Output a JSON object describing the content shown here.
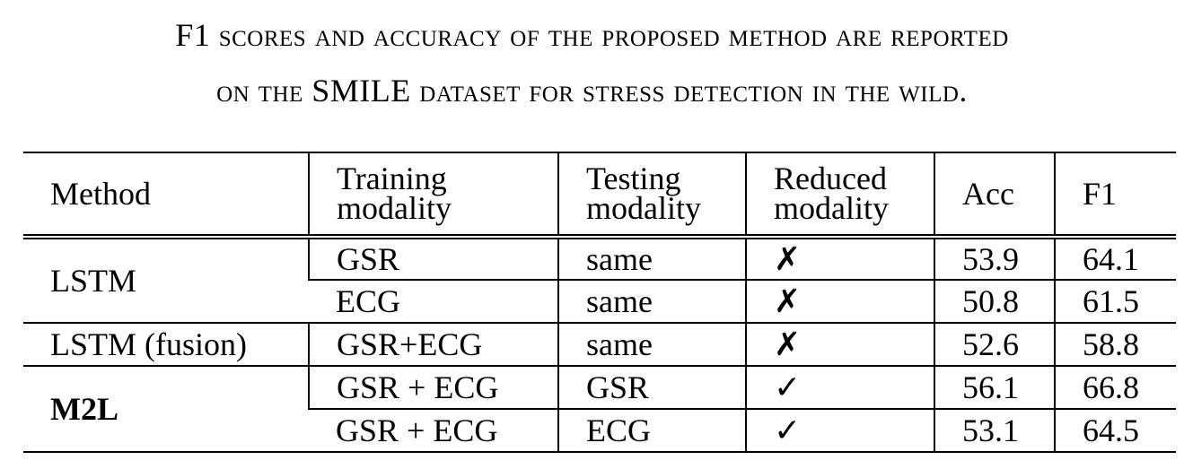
{
  "caption": {
    "line1": "F1 scores and accuracy of the proposed method are reported",
    "line2": "on the SMILE dataset for stress detection in the wild."
  },
  "table": {
    "headers": {
      "method": "Method",
      "training_line1": "Training",
      "training_line2": "modality",
      "testing_line1": "Testing",
      "testing_line2": "modality",
      "reduced_line1": "Reduced",
      "reduced_line2": "modality",
      "acc": "Acc",
      "f1": "F1"
    },
    "groups": [
      {
        "method": "LSTM",
        "bold": false,
        "rows": [
          {
            "training": "GSR",
            "testing": "same",
            "reduced": "✗",
            "acc": "53.9",
            "f1": "64.1"
          },
          {
            "training": "ECG",
            "testing": "same",
            "reduced": "✗",
            "acc": "50.8",
            "f1": "61.5"
          }
        ]
      },
      {
        "method": "LSTM (fusion)",
        "bold": false,
        "rows": [
          {
            "training": "GSR+ECG",
            "testing": "same",
            "reduced": "✗",
            "acc": "52.6",
            "f1": "58.8"
          }
        ]
      },
      {
        "method": "M2L",
        "bold": true,
        "rows": [
          {
            "training": "GSR + ECG",
            "testing": "GSR",
            "reduced": "✓",
            "acc": "56.1",
            "f1": "66.8"
          },
          {
            "training": "GSR + ECG",
            "testing": "ECG",
            "reduced": "✓",
            "acc": "53.1",
            "f1": "64.5"
          }
        ]
      }
    ]
  }
}
